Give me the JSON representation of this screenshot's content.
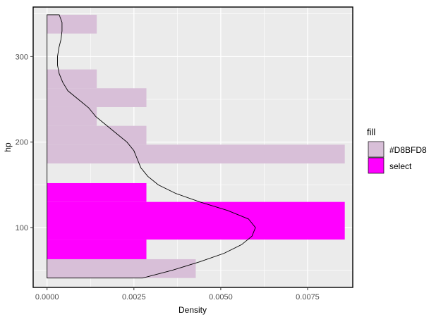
{
  "chart_data": {
    "type": "histogram",
    "orientation": "horizontal",
    "xlabel": "Density",
    "ylabel": "hp",
    "xlim": [
      -0.0004,
      0.0088
    ],
    "ylim": [
      30,
      358
    ],
    "x_ticks": [
      0.0,
      0.0025,
      0.005,
      0.0075
    ],
    "x_tick_labels": [
      "0.0000",
      "0.0025",
      "0.0050",
      "0.0075"
    ],
    "y_ticks": [
      100,
      200,
      300
    ],
    "y_tick_labels": [
      "100",
      "200",
      "300"
    ],
    "grid": true,
    "legend": {
      "title": "fill",
      "placement": "right",
      "entries": [
        {
          "label": "#D8BFD8",
          "color": "#D8BFD8"
        },
        {
          "label": "select",
          "color": "#FF00FF"
        }
      ]
    },
    "bins": [
      {
        "y0": 41,
        "y1": 63,
        "density": 0.00428,
        "fill": "#D8BFD8"
      },
      {
        "y0": 63,
        "y1": 86,
        "density": 0.00286,
        "fill": "#FF00FF"
      },
      {
        "y0": 86,
        "y1": 130,
        "density": 0.00857,
        "fill": "#FF00FF"
      },
      {
        "y0": 130,
        "y1": 152,
        "density": 0.00286,
        "fill": "#FF00FF"
      },
      {
        "y0": 175,
        "y1": 197,
        "density": 0.00857,
        "fill": "#D8BFD8"
      },
      {
        "y0": 197,
        "y1": 219,
        "density": 0.00286,
        "fill": "#D8BFD8"
      },
      {
        "y0": 219,
        "y1": 241,
        "density": 0.00143,
        "fill": "#D8BFD8"
      },
      {
        "y0": 241,
        "y1": 263,
        "density": 0.00286,
        "fill": "#D8BFD8"
      },
      {
        "y0": 263,
        "y1": 285,
        "density": 0.00143,
        "fill": "#D8BFD8"
      },
      {
        "y0": 327,
        "y1": 349,
        "density": 0.00143,
        "fill": "#D8BFD8"
      }
    ],
    "density_curve": [
      {
        "y": 41,
        "density": 0.00275
      },
      {
        "y": 50,
        "density": 0.0036
      },
      {
        "y": 60,
        "density": 0.0044
      },
      {
        "y": 70,
        "density": 0.0051
      },
      {
        "y": 80,
        "density": 0.0056
      },
      {
        "y": 90,
        "density": 0.0059
      },
      {
        "y": 100,
        "density": 0.006
      },
      {
        "y": 110,
        "density": 0.0058
      },
      {
        "y": 120,
        "density": 0.0052
      },
      {
        "y": 130,
        "density": 0.0044
      },
      {
        "y": 140,
        "density": 0.0037
      },
      {
        "y": 150,
        "density": 0.0032
      },
      {
        "y": 160,
        "density": 0.0029
      },
      {
        "y": 170,
        "density": 0.0027
      },
      {
        "y": 180,
        "density": 0.0026
      },
      {
        "y": 190,
        "density": 0.0025
      },
      {
        "y": 200,
        "density": 0.0023
      },
      {
        "y": 210,
        "density": 0.002
      },
      {
        "y": 220,
        "density": 0.0017
      },
      {
        "y": 230,
        "density": 0.0014
      },
      {
        "y": 240,
        "density": 0.0012
      },
      {
        "y": 250,
        "density": 0.0009
      },
      {
        "y": 260,
        "density": 0.0006
      },
      {
        "y": 270,
        "density": 0.00045
      },
      {
        "y": 280,
        "density": 0.00035
      },
      {
        "y": 290,
        "density": 0.0003
      },
      {
        "y": 300,
        "density": 0.0003
      },
      {
        "y": 310,
        "density": 0.00034
      },
      {
        "y": 320,
        "density": 0.0004
      },
      {
        "y": 330,
        "density": 0.00043
      },
      {
        "y": 340,
        "density": 0.00043
      },
      {
        "y": 349,
        "density": 0.00035
      }
    ]
  }
}
